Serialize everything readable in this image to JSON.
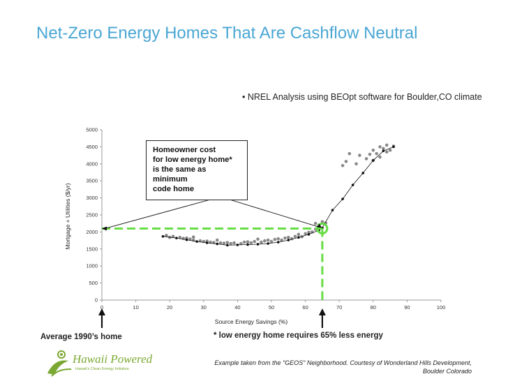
{
  "slide": {
    "title": "Net-Zero Energy Homes That Are Cashflow Neutral",
    "note": "• NREL Analysis using BEOpt software for Boulder,CO climate",
    "callout_lines": [
      "Homeowner cost",
      "for low energy home*",
      "is the same as",
      "minimum",
      "code home"
    ],
    "left_label": "Average 1990’s home",
    "right_label": "* low energy home requires 65% less energy",
    "credit_lines": [
      "Example taken from the \"GEOS\" Neighborhood. Courtesy of Wonderland Hills Development,",
      "Boulder Colorado"
    ],
    "logo_text": "Hawaii Powered",
    "logo_subtext": "Hawaii's Clean Energy Initiative"
  },
  "chart_data": {
    "type": "scatter",
    "xlabel": "Source Energy Savings (%)",
    "ylabel": "Mortgage + Utilities ($/yr)",
    "xlim": [
      0,
      100
    ],
    "ylim": [
      0,
      5000
    ],
    "x_ticks": [
      "0",
      "10",
      "20",
      "30",
      "40",
      "50",
      "60",
      "70",
      "80",
      "90",
      "100"
    ],
    "y_ticks": [
      "0",
      "500",
      "1000",
      "1500",
      "2000",
      "2500",
      "3000",
      "3500",
      "4000",
      "4500",
      "5000"
    ],
    "reference_cost": 2100,
    "reference_savings": 65,
    "colors": {
      "frontier": "#111111",
      "options": "#888888",
      "reference": "#66dd44"
    },
    "series": [
      {
        "role": "frontier",
        "points": [
          [
            18,
            1870
          ],
          [
            22,
            1820
          ],
          [
            25,
            1770
          ],
          [
            28,
            1720
          ],
          [
            31,
            1680
          ],
          [
            34,
            1650
          ],
          [
            37,
            1610
          ],
          [
            40,
            1620
          ],
          [
            43,
            1630
          ],
          [
            46,
            1640
          ],
          [
            49,
            1660
          ],
          [
            52,
            1700
          ],
          [
            55,
            1760
          ],
          [
            58,
            1840
          ],
          [
            61,
            1930
          ],
          [
            64,
            2050
          ],
          [
            65,
            2120
          ],
          [
            68,
            2640
          ],
          [
            71,
            2970
          ],
          [
            74,
            3380
          ],
          [
            77,
            3730
          ],
          [
            80,
            4100
          ],
          [
            83,
            4380
          ],
          [
            86,
            4500
          ]
        ]
      },
      {
        "role": "options",
        "points": [
          [
            19,
            1900
          ],
          [
            21,
            1870
          ],
          [
            23,
            1840
          ],
          [
            24,
            1810
          ],
          [
            26,
            1790
          ],
          [
            27,
            1760
          ],
          [
            29,
            1740
          ],
          [
            30,
            1720
          ],
          [
            32,
            1700
          ],
          [
            33,
            1690
          ],
          [
            35,
            1680
          ],
          [
            36,
            1670
          ],
          [
            38,
            1660
          ],
          [
            39,
            1680
          ],
          [
            41,
            1660
          ],
          [
            42,
            1700
          ],
          [
            44,
            1680
          ],
          [
            45,
            1720
          ],
          [
            47,
            1700
          ],
          [
            48,
            1740
          ],
          [
            50,
            1720
          ],
          [
            51,
            1780
          ],
          [
            53,
            1760
          ],
          [
            54,
            1820
          ],
          [
            56,
            1800
          ],
          [
            57,
            1870
          ],
          [
            59,
            1860
          ],
          [
            60,
            1950
          ],
          [
            62,
            2000
          ],
          [
            63,
            2080
          ],
          [
            64,
            2200
          ],
          [
            65,
            2300
          ],
          [
            66,
            2260
          ],
          [
            63,
            2250
          ],
          [
            20,
            1840
          ],
          [
            25,
            1820
          ],
          [
            31,
            1730
          ],
          [
            37,
            1690
          ],
          [
            43,
            1710
          ],
          [
            49,
            1760
          ],
          [
            55,
            1840
          ],
          [
            61,
            1990
          ],
          [
            71,
            3950
          ],
          [
            72,
            4070
          ],
          [
            73,
            4300
          ],
          [
            75,
            4000
          ],
          [
            76,
            4250
          ],
          [
            78,
            4150
          ],
          [
            79,
            4280
          ],
          [
            80,
            4400
          ],
          [
            81,
            4300
          ],
          [
            82,
            4500
          ],
          [
            83,
            4450
          ],
          [
            84,
            4550
          ],
          [
            85,
            4400
          ],
          [
            86,
            4520
          ],
          [
            84,
            4350
          ],
          [
            82,
            4200
          ],
          [
            80,
            4100
          ],
          [
            27,
            1850
          ],
          [
            34,
            1760
          ],
          [
            46,
            1790
          ],
          [
            52,
            1800
          ],
          [
            58,
            1930
          ]
        ]
      }
    ]
  }
}
